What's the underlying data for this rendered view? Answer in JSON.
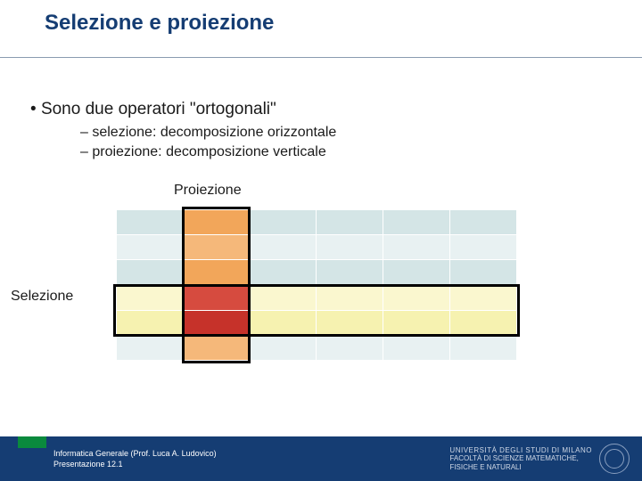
{
  "title": "Selezione e proiezione",
  "bullets": {
    "main": "Sono due operatori \"ortogonali\"",
    "subs": [
      "selezione: decomposizione orizzontale",
      "proiezione: decomposizione verticale"
    ]
  },
  "diagram": {
    "proj_label": "Proiezione",
    "sel_label": "Selezione",
    "grid": {
      "rows": 6,
      "cols": 6
    },
    "colors": {
      "base_even": "#d4e5e6",
      "base_odd": "#e8f1f2",
      "proj_even": "#f2a65a",
      "proj_odd": "#f5b87a",
      "sel_even": "#f6f2b0",
      "sel_odd": "#faf7cf",
      "intersect_even": "#c6322a",
      "intersect_odd": "#d64b3f",
      "cell_border": "#ffffff",
      "box_border": "#000000"
    },
    "projection_col": 1,
    "selection_rows": [
      3,
      4
    ]
  },
  "footer": {
    "line1": "Informatica Generale (Prof. Luca A. Ludovico)",
    "line2": "Presentazione 12.1",
    "uni1": "UNIVERSITÀ DEGLI STUDI DI MILANO",
    "uni2": "FACOLTÀ DI SCIENZE MATEMATICHE,",
    "uni3": "FISICHE E NATURALI",
    "bg": "#153d73",
    "accent": "#0a8a3d"
  }
}
